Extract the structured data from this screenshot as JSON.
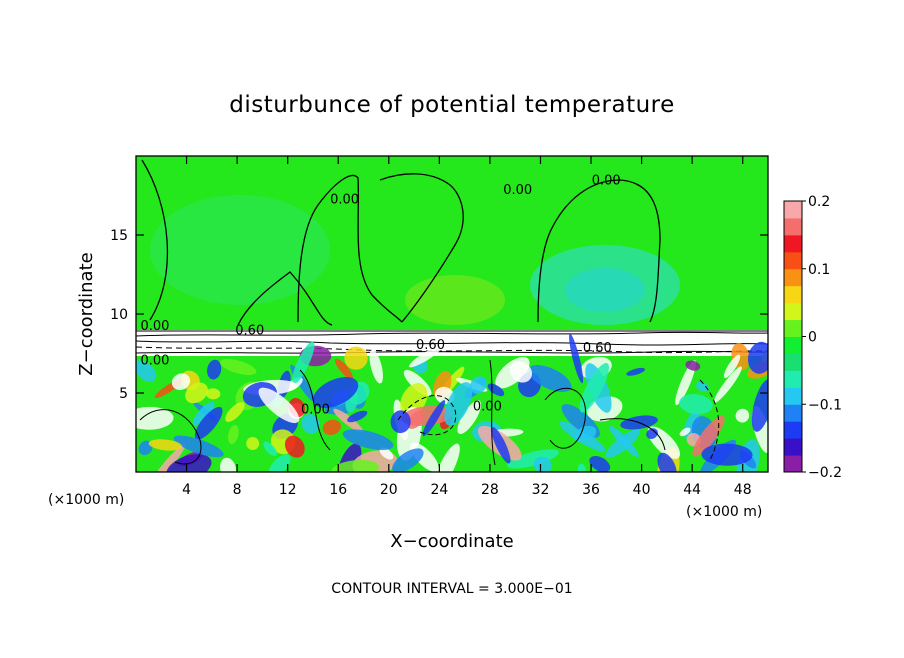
{
  "chart_data": {
    "type": "heatmap",
    "title": "disturbunce of potential temperature",
    "xlabel": "X−coordinate",
    "ylabel": "Z−coordinate",
    "x_unit": "(×1000 m)",
    "x_ticks": [
      4,
      8,
      12,
      16,
      20,
      24,
      28,
      32,
      36,
      40,
      44,
      48
    ],
    "y_ticks": [
      5,
      10,
      15
    ],
    "xlim": [
      0,
      50
    ],
    "ylim": [
      0,
      20
    ],
    "colorbar": {
      "ticks": [
        0.2,
        0.1,
        0,
        -0.1,
        -0.2
      ],
      "tick_labels": [
        "0.2",
        "0.1",
        "0",
        "−0.1",
        "−0.2"
      ],
      "range": [
        -0.2,
        0.2
      ],
      "colors": [
        "#8a1ea6",
        "#3a0fc8",
        "#1d3bf2",
        "#1e82f5",
        "#25c8f0",
        "#20ecb0",
        "#18e070",
        "#10ef30",
        "#66f21e",
        "#d2f51a",
        "#f7d613",
        "#f99212",
        "#f74f14",
        "#f01722",
        "#f56e6e",
        "#f8a8a8"
      ]
    },
    "contour_labels": [
      {
        "text": "0.00",
        "x": 30.2,
        "y": 17.6
      },
      {
        "text": "0.00",
        "x": 16.5,
        "y": 17.0
      },
      {
        "text": "0.00",
        "x": 37.2,
        "y": 18.2
      },
      {
        "text": "0.00",
        "x": 1.5,
        "y": 9.0
      },
      {
        "text": "0.00",
        "x": 1.5,
        "y": 6.8
      },
      {
        "text": "0.60",
        "x": 9.0,
        "y": 8.7
      },
      {
        "text": "0.60",
        "x": 23.3,
        "y": 7.8
      },
      {
        "text": "0.60",
        "x": 36.5,
        "y": 7.6
      },
      {
        "text": "0.00",
        "x": 14.2,
        "y": 3.7
      },
      {
        "text": "0.00",
        "x": 27.8,
        "y": 3.9
      }
    ],
    "footer": "CONTOUR INTERVAL = 3.000E−01",
    "grid": false,
    "legend_position": "right"
  },
  "colors": {
    "upper_field": "#24e81c",
    "white": "#ffffff",
    "outline": "#000000"
  }
}
